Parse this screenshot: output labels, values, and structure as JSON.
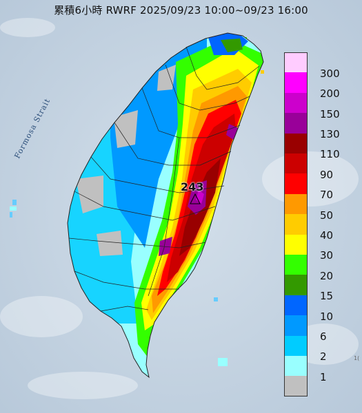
{
  "title": "累積6小時 RWRF 2025/09/23 10:00~09/23 16:00",
  "strait_label": "Formosa Strait",
  "max_value_label": "243",
  "corner_text": "1(",
  "legend": {
    "bins": [
      {
        "label": "300",
        "color": "#ffccff"
      },
      {
        "label": "200",
        "color": "#ff00ff"
      },
      {
        "label": "150",
        "color": "#cc00cc"
      },
      {
        "label": "130",
        "color": "#990099"
      },
      {
        "label": "110",
        "color": "#990000"
      },
      {
        "label": "90",
        "color": "#cc0000"
      },
      {
        "label": "70",
        "color": "#ff0000"
      },
      {
        "label": "50",
        "color": "#ff9900"
      },
      {
        "label": "40",
        "color": "#ffcc00"
      },
      {
        "label": "30",
        "color": "#ffff00"
      },
      {
        "label": "20",
        "color": "#33ff00"
      },
      {
        "label": "15",
        "color": "#339900"
      },
      {
        "label": "10",
        "color": "#0066ff"
      },
      {
        "label": "6",
        "color": "#0099ff"
      },
      {
        "label": "2",
        "color": "#00ccff"
      },
      {
        "label": "1",
        "color": "#99ffff"
      },
      {
        "label": "",
        "color": "#c0c0c0"
      }
    ]
  }
}
